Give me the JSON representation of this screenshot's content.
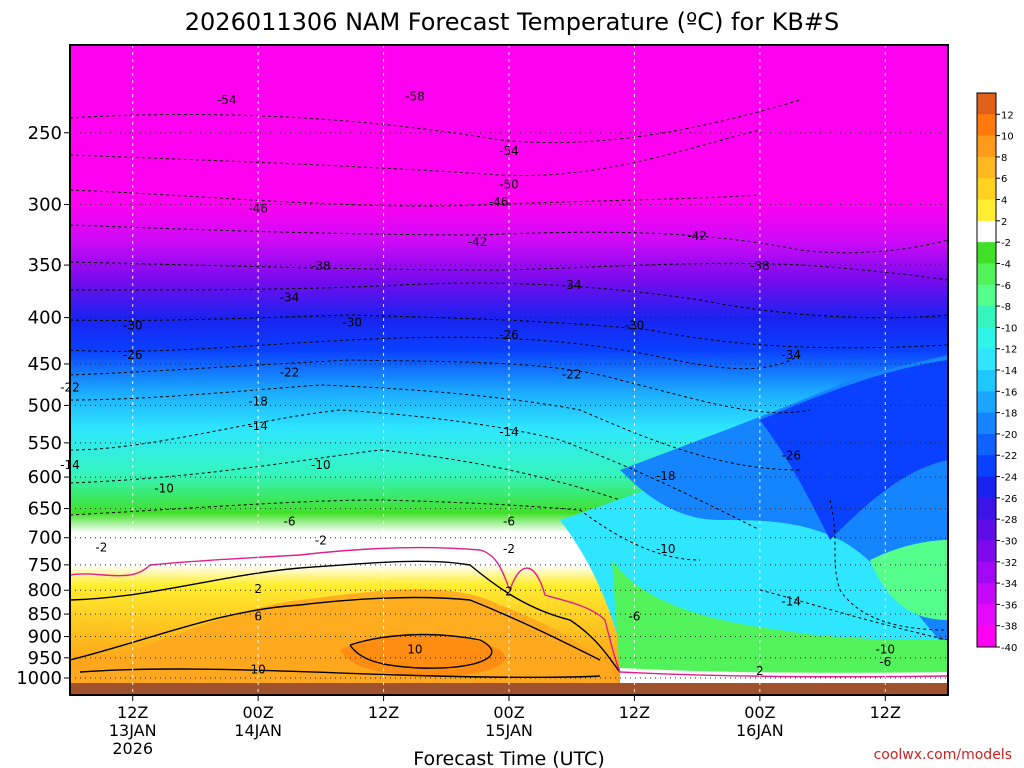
{
  "chart_data": {
    "type": "heatmap",
    "title": "2026011306 NAM Forecast Temperature (ºC) for KB#S",
    "xlabel": "Forecast Time (UTC)",
    "ylabel": "",
    "credit": "coolwx.com/models",
    "y_axis": {
      "scale": "log-pressure",
      "reversed": true,
      "ticks": [
        250,
        300,
        350,
        400,
        450,
        500,
        550,
        600,
        650,
        700,
        750,
        800,
        850,
        900,
        950,
        1000
      ],
      "ylim": [
        1000,
        200
      ]
    },
    "x_axis": {
      "xlim": [
        "2026-01-13 06Z",
        "2026-01-16 18Z"
      ],
      "ticks": [
        {
          "t": "2026-01-13 12Z",
          "line1": "12Z",
          "line2": "13JAN",
          "line3": "2026"
        },
        {
          "t": "2026-01-14 00Z",
          "line1": "00Z",
          "line2": "14JAN",
          "line3": ""
        },
        {
          "t": "2026-01-14 12Z",
          "line1": "12Z",
          "line2": "",
          "line3": ""
        },
        {
          "t": "2026-01-15 00Z",
          "line1": "00Z",
          "line2": "15JAN",
          "line3": ""
        },
        {
          "t": "2026-01-15 12Z",
          "line1": "12Z",
          "line2": "",
          "line3": ""
        },
        {
          "t": "2026-01-16 00Z",
          "line1": "00Z",
          "line2": "16JAN",
          "line3": ""
        },
        {
          "t": "2026-01-16 12Z",
          "line1": "12Z",
          "line2": "",
          "line3": ""
        }
      ]
    },
    "grid": true,
    "colorbar": {
      "placement": "right",
      "ticks": [
        12,
        10,
        8,
        6,
        4,
        2,
        -2,
        -4,
        -6,
        -8,
        -10,
        -12,
        -14,
        -16,
        -18,
        -20,
        -22,
        -24,
        -26,
        -28,
        -30,
        -32,
        -34,
        -36,
        -38,
        -40
      ],
      "colors": [
        "#e0601a",
        "#ff7a0a",
        "#ff9a1a",
        "#ffb81f",
        "#ffd21f",
        "#ffee30",
        "#ffffff",
        "#40e028",
        "#52f25a",
        "#54ff8c",
        "#34f5be",
        "#2ef5e8",
        "#30e6ff",
        "#1ec8ff",
        "#1aa6ff",
        "#1584ff",
        "#0f62ff",
        "#0a40ff",
        "#1a22f0",
        "#3c14e8",
        "#5e0ce8",
        "#8008ee",
        "#a208f4",
        "#c608f8",
        "#e608fc",
        "#ff00f0"
      ]
    },
    "contour_labels": [
      {
        "t": "2026-01-13 21Z",
        "p": 230,
        "text": "-54"
      },
      {
        "t": "2026-01-14 15Z",
        "p": 228,
        "text": "-58"
      },
      {
        "t": "2026-01-15 00Z",
        "p": 262,
        "text": "-54"
      },
      {
        "t": "2026-01-15 00Z",
        "p": 285,
        "text": "-50"
      },
      {
        "t": "2026-01-14 23Z",
        "p": 298,
        "text": "-46"
      },
      {
        "t": "2026-01-14 00Z",
        "p": 303,
        "text": "-46"
      },
      {
        "t": "2026-01-14 21Z",
        "p": 330,
        "text": "-42"
      },
      {
        "t": "2026-01-15 18Z",
        "p": 325,
        "text": "-42"
      },
      {
        "t": "2026-01-14 06Z",
        "p": 351,
        "text": "-38"
      },
      {
        "t": "2026-01-16 00Z",
        "p": 351,
        "text": "-38"
      },
      {
        "t": "2026-01-15 06Z",
        "p": 368,
        "text": "-34"
      },
      {
        "t": "2026-01-14 03Z",
        "p": 380,
        "text": "-34"
      },
      {
        "t": "2026-01-14 09Z",
        "p": 405,
        "text": "-30"
      },
      {
        "t": "2026-01-13 12Z",
        "p": 408,
        "text": "-30"
      },
      {
        "t": "2026-01-15 12Z",
        "p": 408,
        "text": "-30"
      },
      {
        "t": "2026-01-15 00Z",
        "p": 418,
        "text": "-26"
      },
      {
        "t": "2026-01-13 12Z",
        "p": 440,
        "text": "-26"
      },
      {
        "t": "2026-01-16 03Z",
        "p": 440,
        "text": "-34"
      },
      {
        "t": "2026-01-14 03Z",
        "p": 460,
        "text": "-22"
      },
      {
        "t": "2026-01-15 06Z",
        "p": 462,
        "text": "-22"
      },
      {
        "t": "2026-01-13 06Z",
        "p": 478,
        "text": "-22"
      },
      {
        "t": "2026-01-14 00Z",
        "p": 495,
        "text": "-18"
      },
      {
        "t": "2026-01-14 00Z",
        "p": 527,
        "text": "-14"
      },
      {
        "t": "2026-01-15 00Z",
        "p": 535,
        "text": "-14"
      },
      {
        "t": "2026-01-16 03Z",
        "p": 568,
        "text": "-26"
      },
      {
        "t": "2026-01-14 06Z",
        "p": 582,
        "text": "-10"
      },
      {
        "t": "2026-01-13 06Z",
        "p": 582,
        "text": "-14"
      },
      {
        "t": "2026-01-15 15Z",
        "p": 598,
        "text": "-18"
      },
      {
        "t": "2026-01-13 15Z",
        "p": 618,
        "text": "-10"
      },
      {
        "t": "2026-01-14 03Z",
        "p": 672,
        "text": "-6"
      },
      {
        "t": "2026-01-15 00Z",
        "p": 672,
        "text": "-6"
      },
      {
        "t": "2026-01-13 09Z",
        "p": 718,
        "text": "-2"
      },
      {
        "t": "2026-01-14 06Z",
        "p": 705,
        "text": "-2"
      },
      {
        "t": "2026-01-15 00Z",
        "p": 720,
        "text": "-2"
      },
      {
        "t": "2026-01-15 15Z",
        "p": 720,
        "text": "-10"
      },
      {
        "t": "2026-01-14 00Z",
        "p": 797,
        "text": "2"
      },
      {
        "t": "2026-01-15 00Z",
        "p": 803,
        "text": "2"
      },
      {
        "t": "2026-01-15 12Z",
        "p": 855,
        "text": "-6"
      },
      {
        "t": "2026-01-14 00Z",
        "p": 855,
        "text": "6"
      },
      {
        "t": "2026-01-16 03Z",
        "p": 823,
        "text": "-14"
      },
      {
        "t": "2026-01-14 15Z",
        "p": 930,
        "text": "10"
      },
      {
        "t": "2026-01-16 12Z",
        "p": 930,
        "text": "-10"
      },
      {
        "t": "2026-01-14 00Z",
        "p": 978,
        "text": "10"
      },
      {
        "t": "2026-01-16 12Z",
        "p": 960,
        "text": "-6"
      },
      {
        "t": "2026-01-16 00Z",
        "p": 982,
        "text": "2"
      }
    ]
  }
}
